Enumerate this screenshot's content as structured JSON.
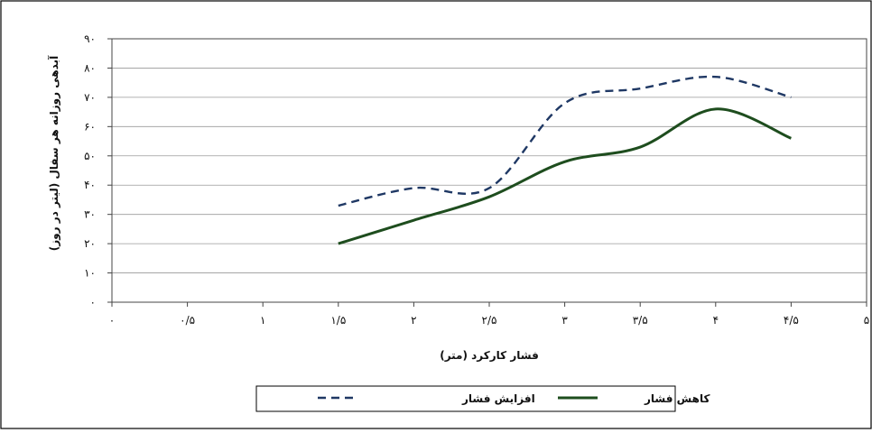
{
  "chart_data": {
    "type": "line",
    "xlabel": "فشار کارکرد (متر)",
    "ylabel": "آبدهی روزانه هر سفال (لیتر در روز)",
    "xlim": [
      0,
      5
    ],
    "ylim": [
      0,
      90
    ],
    "grid": "horizontal",
    "legend_position": "bottom",
    "x_ticks": [
      {
        "value": 0,
        "label": "۰"
      },
      {
        "value": 0.5,
        "label": "۰/۵"
      },
      {
        "value": 1,
        "label": "۱"
      },
      {
        "value": 1.5,
        "label": "۱/۵"
      },
      {
        "value": 2,
        "label": "۲"
      },
      {
        "value": 2.5,
        "label": "۲/۵"
      },
      {
        "value": 3,
        "label": "۳"
      },
      {
        "value": 3.5,
        "label": "۳/۵"
      },
      {
        "value": 4,
        "label": "۴"
      },
      {
        "value": 4.5,
        "label": "۴/۵"
      },
      {
        "value": 5,
        "label": "۵"
      }
    ],
    "y_ticks": [
      {
        "value": 0,
        "label": "۰"
      },
      {
        "value": 10,
        "label": "۱۰"
      },
      {
        "value": 20,
        "label": "۲۰"
      },
      {
        "value": 30,
        "label": "۳۰"
      },
      {
        "value": 40,
        "label": "۴۰"
      },
      {
        "value": 50,
        "label": "۵۰"
      },
      {
        "value": 60,
        "label": "۶۰"
      },
      {
        "value": 70,
        "label": "۷۰"
      },
      {
        "value": 80,
        "label": "۸۰"
      },
      {
        "value": 90,
        "label": "۹۰"
      }
    ],
    "series": [
      {
        "name": "افزایش فشار",
        "style": "dashed",
        "color": "#1f3864",
        "x": [
          1.5,
          2,
          2.5,
          3,
          3.5,
          4,
          4.5
        ],
        "values": [
          33,
          39,
          39,
          68,
          73,
          77,
          70
        ]
      },
      {
        "name": "کاهش فشار",
        "style": "solid",
        "color": "#1e4d1e",
        "x": [
          1.5,
          2,
          2.5,
          3,
          3.5,
          4,
          4.5
        ],
        "values": [
          20,
          28,
          36,
          48,
          53,
          66,
          56
        ]
      }
    ]
  }
}
